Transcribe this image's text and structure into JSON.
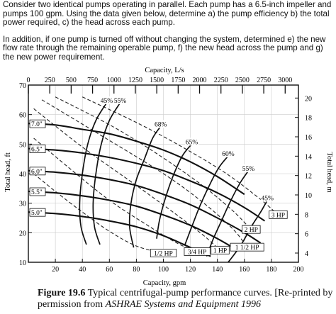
{
  "problem": {
    "paragraph_1": "Consider two identical pumps operating in parallel.  Each pump has a 6.5-inch impeller and pumps 100 gpm. Using the data given below, determine a) the pump efficiency b) the total power required, c) the head across each pump.",
    "paragraph_2": "In addition, if one pump is turned off without changing the system, determined e) the new flow rate through the remaining operable pump, f) the new head across the pump and g) the new power requirement."
  },
  "caption": {
    "figure_label": "Figure 19.6",
    "text_1": " Typical centrifugal-pump performance curves. [Re-printed by permission from ",
    "source": "ASHRAE Systems and Equipment 1996"
  },
  "chart_data": {
    "type": "line",
    "xlabel": "Capacity, gpm",
    "ylabel": "Total head, ft",
    "x2label": "Capacity, L/s",
    "y2label": "Total head, m",
    "xlim": [
      0,
      200
    ],
    "ylim": [
      10,
      70
    ],
    "x2lim": [
      0,
      3155
    ],
    "y2lim": [
      3.05,
      21.34
    ],
    "x_ticks": [
      "20",
      "40",
      "60",
      "80",
      "100",
      "120",
      "140",
      "160",
      "180",
      "200"
    ],
    "x_tick_values": [
      20,
      40,
      60,
      80,
      100,
      120,
      140,
      160,
      180,
      200
    ],
    "y_ticks": [
      "10",
      "20",
      "30",
      "40",
      "50",
      "60",
      "70"
    ],
    "y_tick_values": [
      10,
      20,
      30,
      40,
      50,
      60,
      70
    ],
    "x2_ticks": [
      "0",
      "250",
      "500",
      "750",
      "1000",
      "1250",
      "1500",
      "1750",
      "2000",
      "2250",
      "2500",
      "2750",
      "3000"
    ],
    "x2_tick_values": [
      0,
      250,
      500,
      750,
      1000,
      1250,
      1500,
      1750,
      2000,
      2250,
      2500,
      2750,
      3000
    ],
    "y2_ticks": [
      "4",
      "6",
      "8",
      "10",
      "12",
      "14",
      "16",
      "18",
      "20"
    ],
    "y2_tick_values": [
      4,
      6,
      8,
      10,
      12,
      14,
      16,
      18,
      20
    ],
    "grid": true,
    "impeller_curves": [
      {
        "name": "7.0\"",
        "x": [
          0,
          20,
          40,
          60,
          80,
          100,
          120,
          140,
          160
        ],
        "y": [
          57,
          56.5,
          55,
          53.5,
          51,
          48,
          44,
          39,
          33
        ]
      },
      {
        "name": "6.5\"",
        "x": [
          0,
          20,
          40,
          60,
          80,
          100,
          120,
          140,
          160,
          175
        ],
        "y": [
          48.5,
          48,
          47,
          45.5,
          43.5,
          41,
          37.5,
          33.5,
          28.5,
          24
        ]
      },
      {
        "name": "6.0\"",
        "x": [
          0,
          20,
          40,
          60,
          80,
          100,
          120,
          140,
          160,
          172
        ],
        "y": [
          41,
          40.5,
          39.5,
          38,
          36,
          33,
          29.5,
          25,
          20,
          16.5
        ]
      },
      {
        "name": "5.5\"",
        "x": [
          0,
          20,
          40,
          60,
          80,
          100,
          120,
          140,
          155
        ],
        "y": [
          34,
          33.5,
          32.5,
          31,
          29,
          26,
          22.5,
          18,
          14
        ]
      },
      {
        "name": "5.0\"",
        "x": [
          0,
          20,
          40,
          60,
          80,
          100,
          120,
          135
        ],
        "y": [
          27,
          26.5,
          25.5,
          24,
          22,
          19,
          15,
          12
        ]
      }
    ],
    "efficiency_curves": [
      {
        "name": "45%",
        "x": [
          58,
          50,
          44,
          40,
          38,
          39,
          43
        ],
        "y": [
          64,
          58,
          50,
          40,
          30,
          22,
          16
        ]
      },
      {
        "name": "55%",
        "x": [
          68,
          60,
          54,
          50,
          48,
          49,
          53
        ],
        "y": [
          64,
          58,
          50,
          40,
          30,
          22,
          16
        ]
      },
      {
        "name": "68%",
        "x": [
          98,
          92,
          86,
          80,
          76,
          75,
          78
        ],
        "y": [
          56,
          52,
          45,
          38,
          30,
          22,
          15
        ]
      },
      {
        "name": "65%",
        "x": [
          121,
          114,
          107,
          101,
          97,
          95
        ],
        "y": [
          50,
          46,
          39,
          31,
          24,
          18
        ]
      },
      {
        "name": "60%",
        "x": [
          148,
          141,
          134,
          127,
          121,
          116
        ],
        "y": [
          46,
          42,
          36,
          29,
          22,
          16
        ]
      },
      {
        "name": "55%",
        "x": [
          163,
          157,
          150,
          143,
          137,
          132
        ],
        "y": [
          41,
          37,
          31,
          24,
          18,
          12
        ]
      },
      {
        "name": "45%",
        "x": [
          177,
          172,
          165,
          159,
          153,
          148
        ],
        "y": [
          31,
          27,
          22,
          17,
          13,
          10
        ]
      }
    ],
    "power_lines": [
      {
        "name": "1/2 HP",
        "x": [
          4,
          20,
          40,
          60,
          80,
          100
        ],
        "y": [
          40,
          34,
          27,
          20.5,
          15.5,
          13
        ]
      },
      {
        "name": "3/4 HP",
        "x": [
          4,
          30,
          60,
          90,
          110,
          125
        ],
        "y": [
          52,
          42,
          31,
          22,
          16.5,
          13.5
        ]
      },
      {
        "name": "1 HP",
        "x": [
          4,
          40,
          80,
          110,
          130,
          142
        ],
        "y": [
          62,
          49,
          36,
          26,
          19,
          14
        ]
      },
      {
        "name": "1 1/2 HP",
        "x": [
          10,
          50,
          100,
          130,
          152,
          162
        ],
        "y": [
          65,
          54,
          40,
          30,
          21,
          15
        ]
      },
      {
        "name": "2 HP",
        "x": [
          20,
          70,
          120,
          150,
          165
        ],
        "y": [
          66,
          54,
          39,
          28,
          21
        ]
      },
      {
        "name": "3 HP",
        "x": [
          40,
          90,
          140,
          170,
          185
        ],
        "y": [
          66,
          55,
          42,
          32,
          26
        ]
      }
    ],
    "annotations": [
      "45%",
      "55%",
      "68%",
      "65%",
      "60%",
      "55%",
      "45%",
      "7.0\"",
      "6.5\"",
      "6.0\"",
      "5.5\"",
      "5.0\"",
      "1/2 HP",
      "3/4 HP",
      "1 HP",
      "1 1/2 HP",
      "2 HP",
      "3 HP"
    ]
  }
}
